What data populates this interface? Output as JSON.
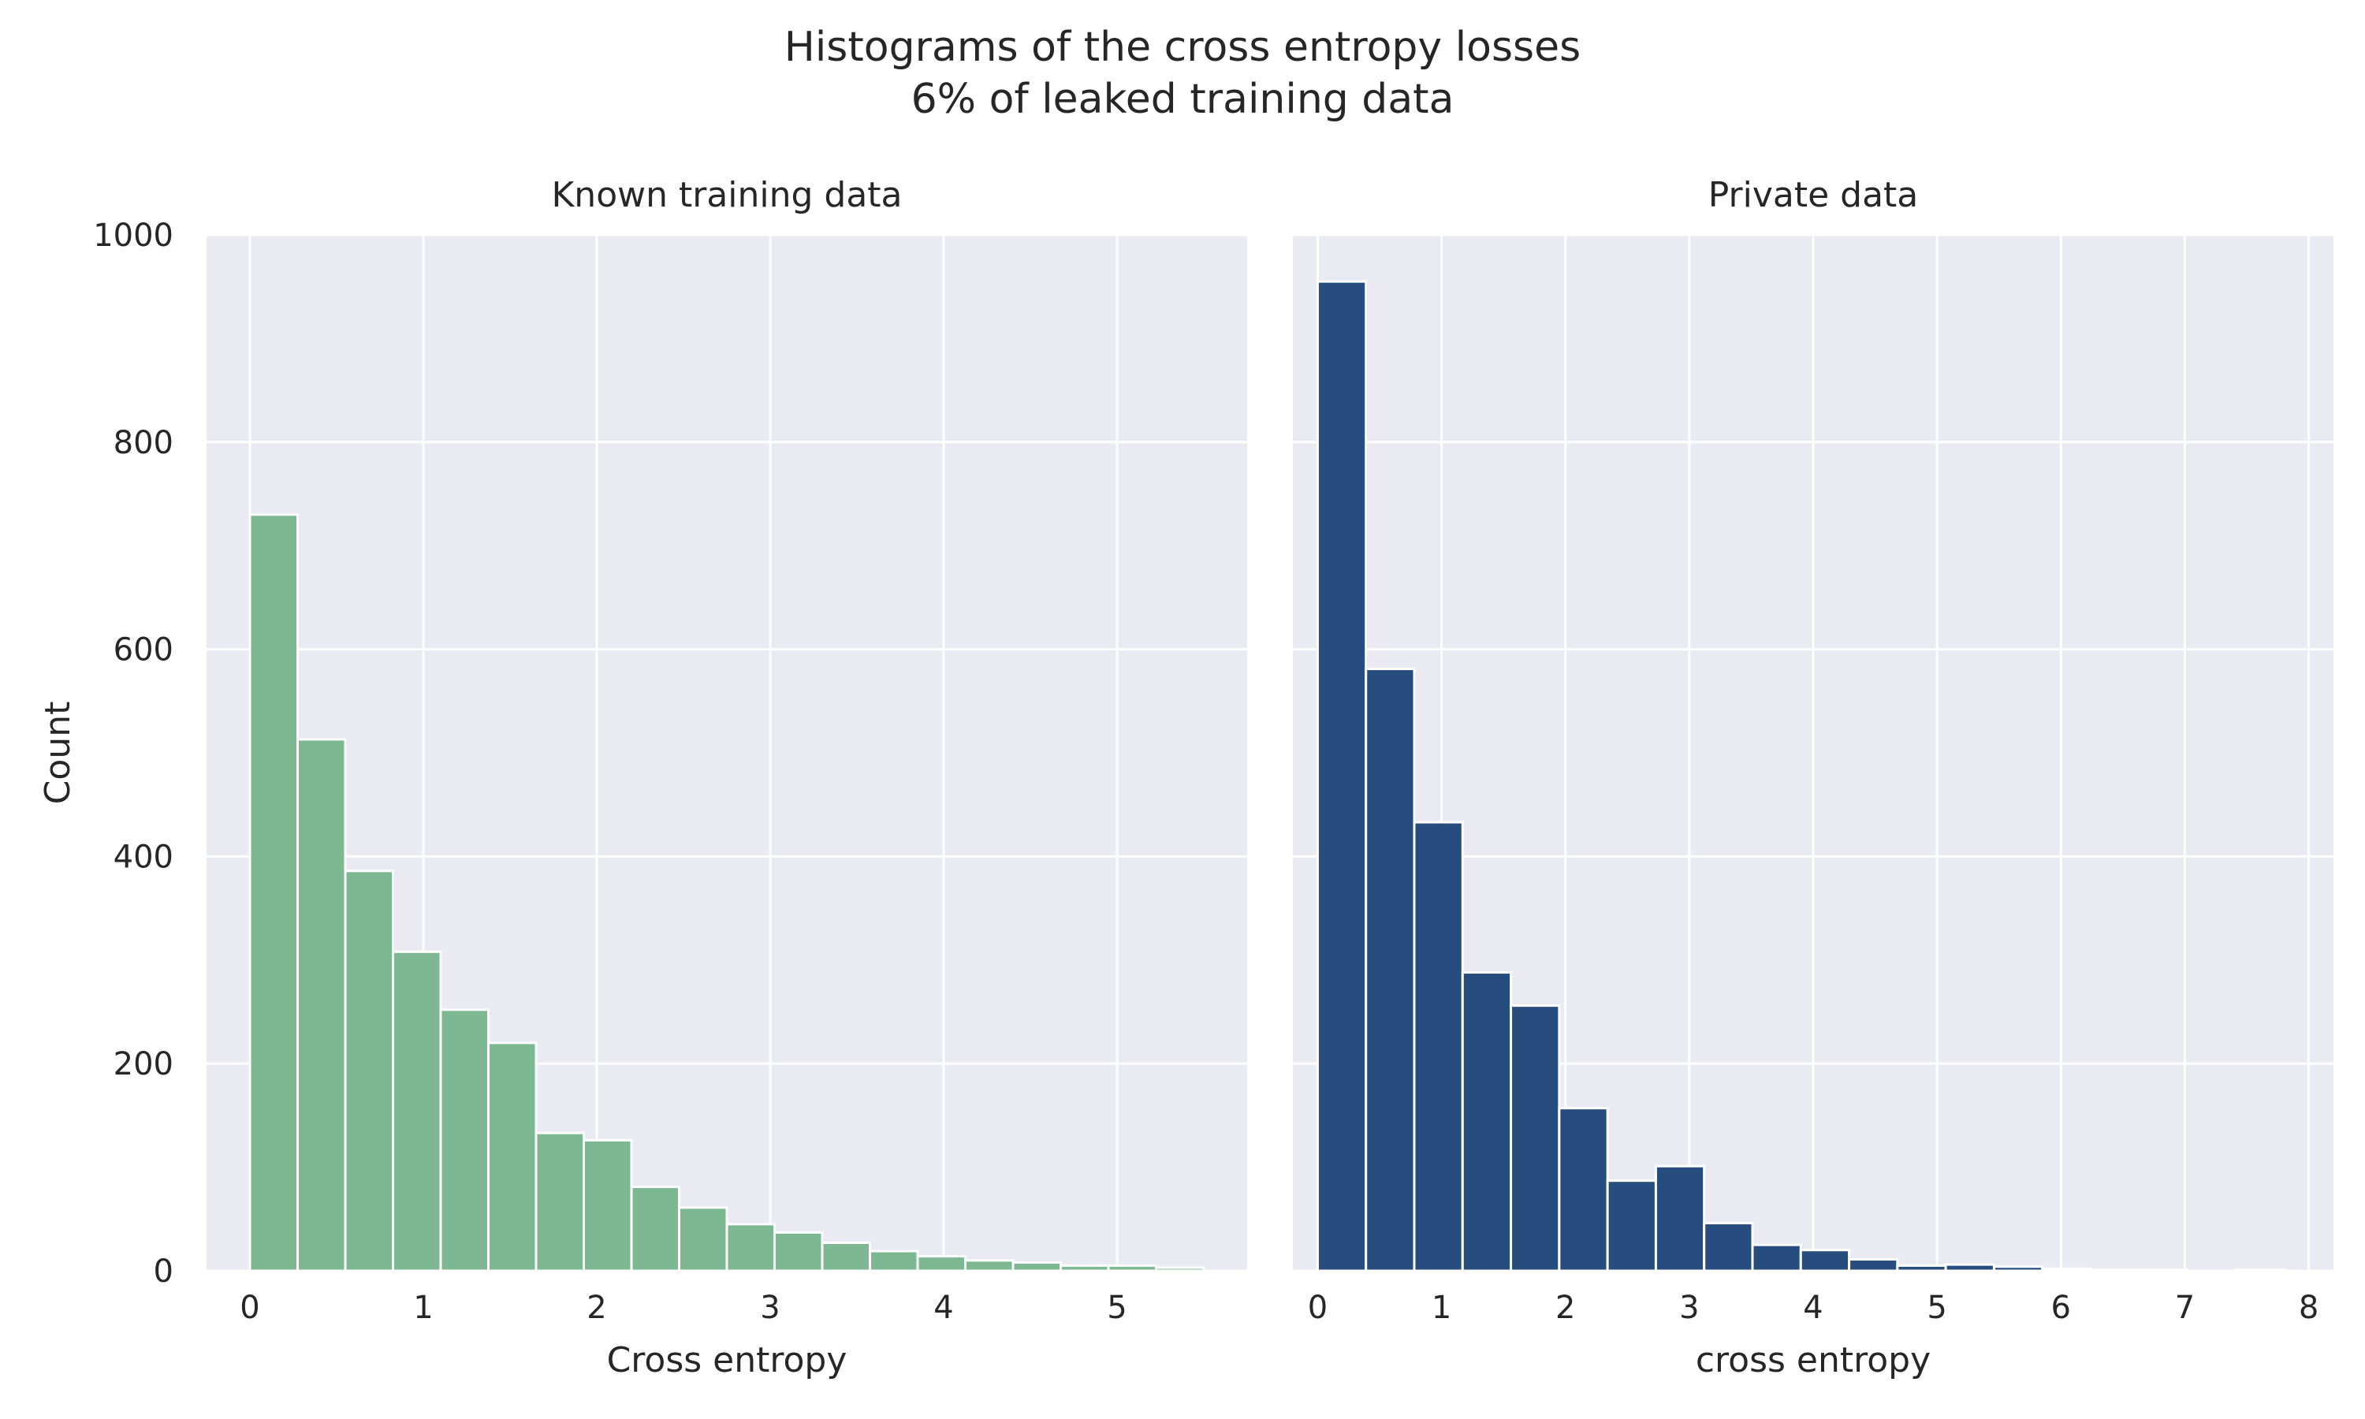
{
  "figure": {
    "title_line1": "Histograms of the cross entropy losses",
    "title_line2": "6% of leaked training data"
  },
  "colors": {
    "background": "#eaeaf2",
    "grid": "#ffffff",
    "known_bar": "#7db892",
    "private_bar": "#274d7e"
  },
  "chart_data": [
    {
      "type": "bar",
      "title": "Known training data",
      "xlabel": "Cross entropy",
      "ylabel": "Count",
      "xlim": [
        -0.25,
        5.75
      ],
      "ylim": [
        0,
        1000
      ],
      "xticks": [
        0,
        1,
        2,
        3,
        4,
        5
      ],
      "yticks": [
        0,
        200,
        400,
        600,
        800,
        1000
      ],
      "grid": true,
      "bin_edges": [
        0,
        0.275,
        0.55,
        0.825,
        1.1,
        1.375,
        1.65,
        1.925,
        2.2,
        2.475,
        2.75,
        3.025,
        3.3,
        3.575,
        3.85,
        4.125,
        4.4,
        4.675,
        4.95,
        5.225,
        5.5
      ],
      "values": [
        730,
        513,
        386,
        308,
        252,
        220,
        133,
        126,
        81,
        61,
        45,
        37,
        27,
        19,
        14,
        10,
        8,
        5,
        5,
        3
      ],
      "color": "#7db892"
    },
    {
      "type": "bar",
      "title": "Private data",
      "xlabel": "cross entropy",
      "ylabel": "",
      "xlim": [
        -0.2,
        8.2
      ],
      "ylim": [
        0,
        1000
      ],
      "xticks": [
        0,
        1,
        2,
        3,
        4,
        5,
        6,
        7,
        8
      ],
      "yticks": [
        0,
        200,
        400,
        600,
        800,
        1000
      ],
      "grid": true,
      "bin_edges": [
        0,
        0.39,
        0.78,
        1.17,
        1.56,
        1.95,
        2.34,
        2.73,
        3.12,
        3.51,
        3.9,
        4.29,
        4.68,
        5.07,
        5.46,
        5.85,
        6.24,
        6.63,
        7.02,
        7.41,
        7.8
      ],
      "values": [
        955,
        581,
        433,
        288,
        256,
        157,
        87,
        101,
        46,
        25,
        20,
        11,
        5,
        6,
        4,
        2,
        1,
        1,
        0,
        1
      ],
      "color": "#274d7e"
    }
  ]
}
